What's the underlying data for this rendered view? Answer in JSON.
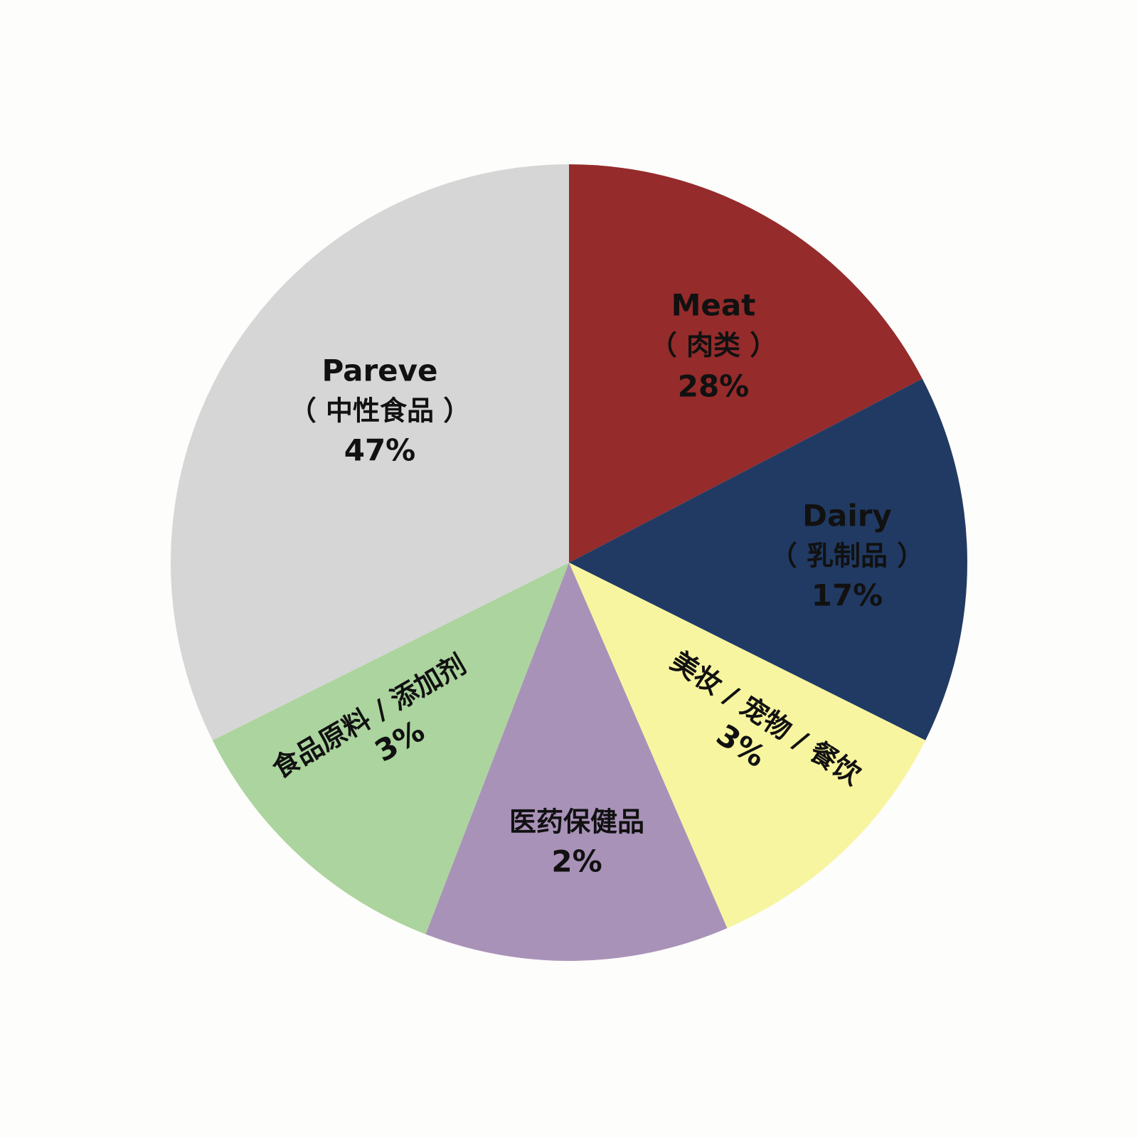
{
  "chart_data": {
    "type": "pie",
    "title": "",
    "start": "top",
    "direction": "clockwise",
    "slices": [
      {
        "name": "Meat",
        "name_cn": "（ 肉类 ）",
        "value": 28,
        "label": "28%",
        "color": "#952b2b"
      },
      {
        "name": "Dairy",
        "name_cn": "（ 乳制品 ）",
        "value": 17,
        "label": "17%",
        "color": "#213a63"
      },
      {
        "name": "美妆 / 宠物 / 餐饮",
        "name_cn": "",
        "value": 3,
        "label": "3%",
        "color": "#f8f5a0"
      },
      {
        "name": "医药保健品",
        "name_cn": "",
        "value": 2,
        "label": "2%",
        "color": "#a992b8"
      },
      {
        "name": "食品原料 / 添加剂",
        "name_cn": "",
        "value": 3,
        "label": "3%",
        "color": "#acd49e"
      },
      {
        "name": "Pareve",
        "name_cn": "（ 中性食品 ）",
        "value": 47,
        "label": "47%",
        "color": "#d6d6d6"
      }
    ]
  }
}
